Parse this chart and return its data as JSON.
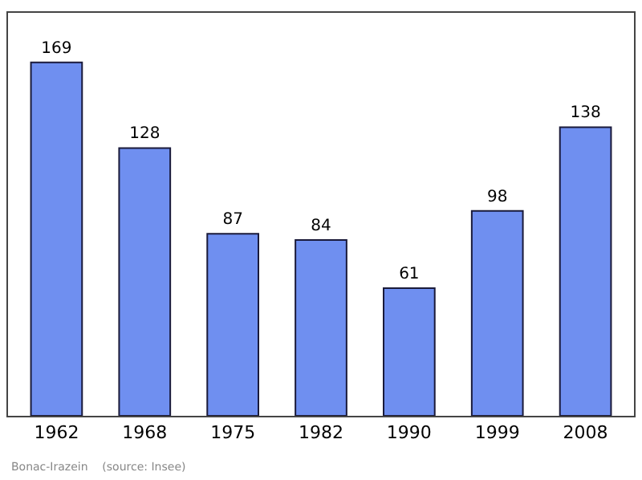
{
  "chart_data": {
    "type": "bar",
    "categories": [
      "1962",
      "1968",
      "1975",
      "1982",
      "1990",
      "1999",
      "2008"
    ],
    "values": [
      169,
      128,
      87,
      84,
      61,
      98,
      138
    ],
    "color": "#6f8ff0",
    "data_labels": true,
    "annotations": [
      "Bonac-Irazein    (source: Insee)"
    ]
  }
}
